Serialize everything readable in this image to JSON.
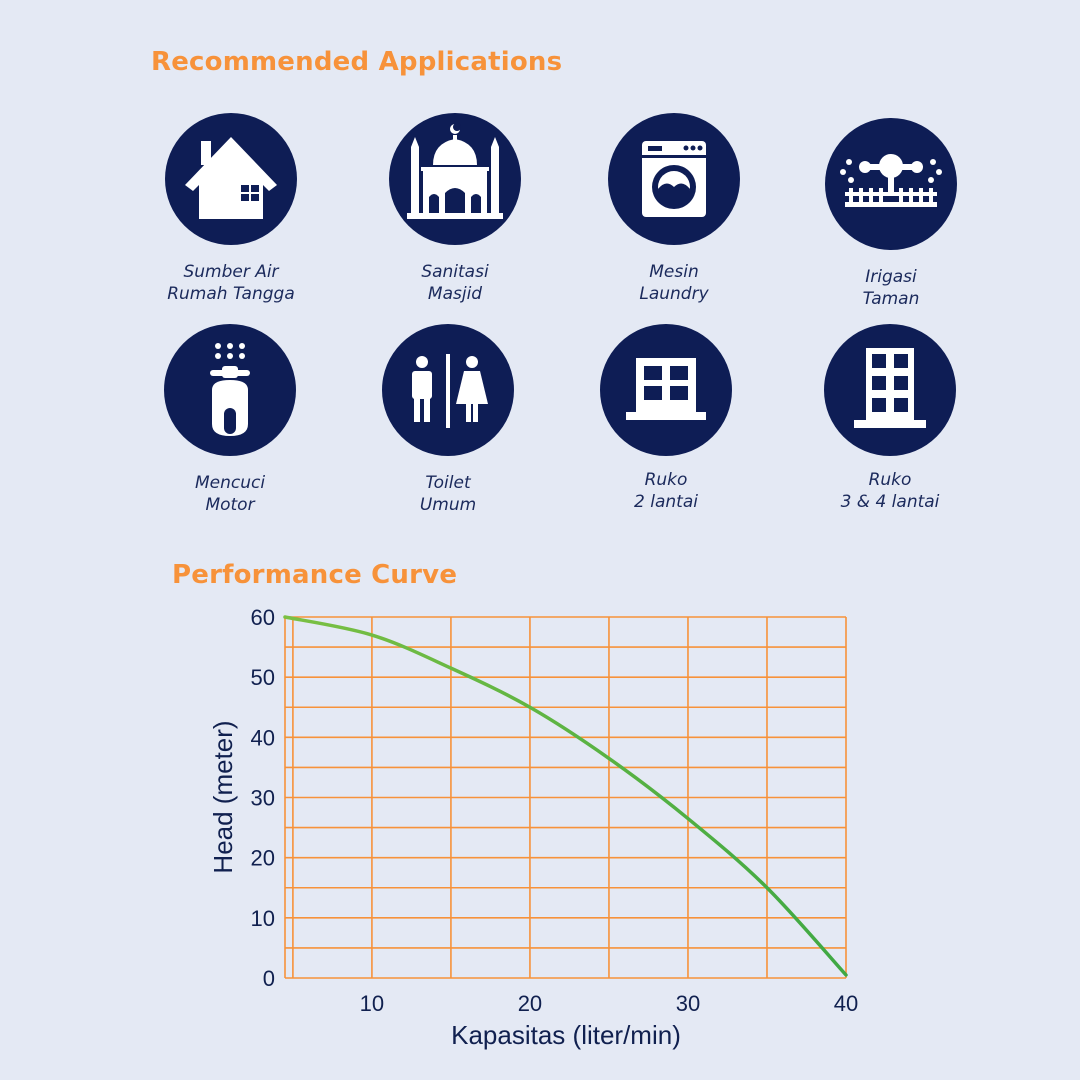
{
  "sections": {
    "applications_title": "Recommended Applications",
    "performance_title": "Performance Curve"
  },
  "applications": [
    {
      "line1": "Sumber Air",
      "line2": "Rumah Tangga",
      "icon": "house-icon"
    },
    {
      "line1": "Sanitasi",
      "line2": "Masjid",
      "icon": "mosque-icon"
    },
    {
      "line1": "Mesin",
      "line2": "Laundry",
      "icon": "washing-machine-icon"
    },
    {
      "line1": "Irigasi",
      "line2": "Taman",
      "icon": "sprinkler-icon"
    },
    {
      "line1": "Mencuci",
      "line2": "Motor",
      "icon": "scooter-wash-icon"
    },
    {
      "line1": "Toilet",
      "line2": "Umum",
      "icon": "restroom-icon"
    },
    {
      "line1": "Ruko",
      "line2": "2 lantai",
      "icon": "building-two-floor-icon"
    },
    {
      "line1": "Ruko",
      "line2": "3 & 4 lantai",
      "icon": "building-multi-floor-icon"
    }
  ],
  "colors": {
    "background": "#e4e9f4",
    "accent": "#f7923a",
    "icon_circle": "#0e1d55",
    "grid": "#f7923a",
    "curve": "#3fa843",
    "text": "#10204f"
  },
  "chart_data": {
    "type": "line",
    "title": "Performance Curve",
    "xlabel": "Kapasitas (liter/min)",
    "ylabel": "Head (meter)",
    "xlim": [
      4.5,
      40
    ],
    "ylim": [
      0,
      60
    ],
    "x_ticks": [
      10,
      20,
      30,
      40
    ],
    "y_ticks": [
      0,
      10,
      20,
      30,
      40,
      50,
      60
    ],
    "grid": true,
    "legend": "none",
    "series": [
      {
        "x": [
          4.5,
          10,
          15,
          20,
          25,
          30,
          35,
          40
        ],
        "y": [
          60,
          57,
          51.5,
          45,
          36.5,
          26.5,
          15,
          0.5
        ]
      }
    ]
  }
}
